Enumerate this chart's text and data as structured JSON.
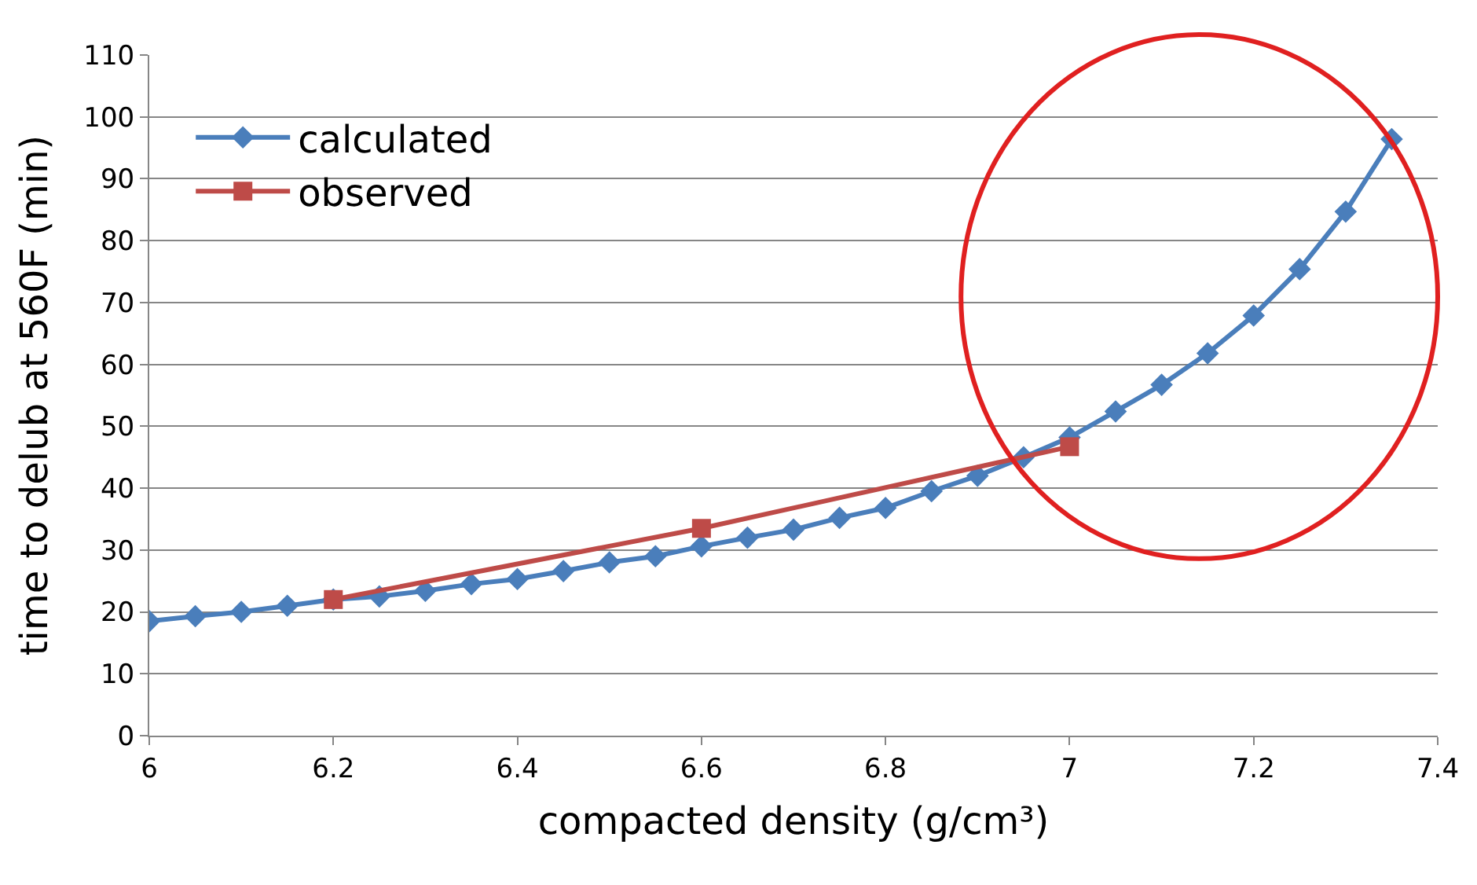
{
  "chart_data": {
    "type": "line",
    "xlabel": "compacted density (g/cm³)",
    "ylabel": "time to delub at 560F (min)",
    "x": [
      6.0,
      6.05,
      6.1,
      6.15,
      6.2,
      6.25,
      6.3,
      6.35,
      6.4,
      6.45,
      6.5,
      6.55,
      6.6,
      6.65,
      6.7,
      6.75,
      6.8,
      6.85,
      6.9,
      6.95,
      7.0,
      7.05,
      7.1,
      7.15,
      7.2,
      7.25,
      7.3,
      7.35
    ],
    "series": [
      {
        "name": "calculated",
        "color": "#4a7ebb",
        "marker": "diamond",
        "values": [
          18.5,
          19.3,
          20,
          21,
          22,
          22.5,
          23.4,
          24.5,
          25.3,
          26.6,
          28,
          29,
          30.6,
          32,
          33.3,
          35.2,
          36.8,
          39.5,
          42,
          45,
          48.2,
          52.4,
          56.7,
          61.8,
          67.9,
          75.4,
          84.7,
          96.4
        ]
      },
      {
        "name": "observed",
        "color": "#be4b48",
        "marker": "square",
        "x": [
          6.2,
          6.6,
          7.0
        ],
        "values": [
          22,
          33.5,
          46.7
        ]
      }
    ],
    "xlim": [
      6,
      7.4
    ],
    "xticks": [
      6,
      6.2,
      6.4,
      6.6,
      6.8,
      7,
      7.2,
      7.4
    ],
    "ylim": [
      0,
      110
    ],
    "yticks": [
      0,
      10,
      20,
      30,
      40,
      50,
      60,
      70,
      80,
      90,
      100,
      110
    ],
    "grid": "y",
    "legend": "top left",
    "line_style": "solid"
  }
}
